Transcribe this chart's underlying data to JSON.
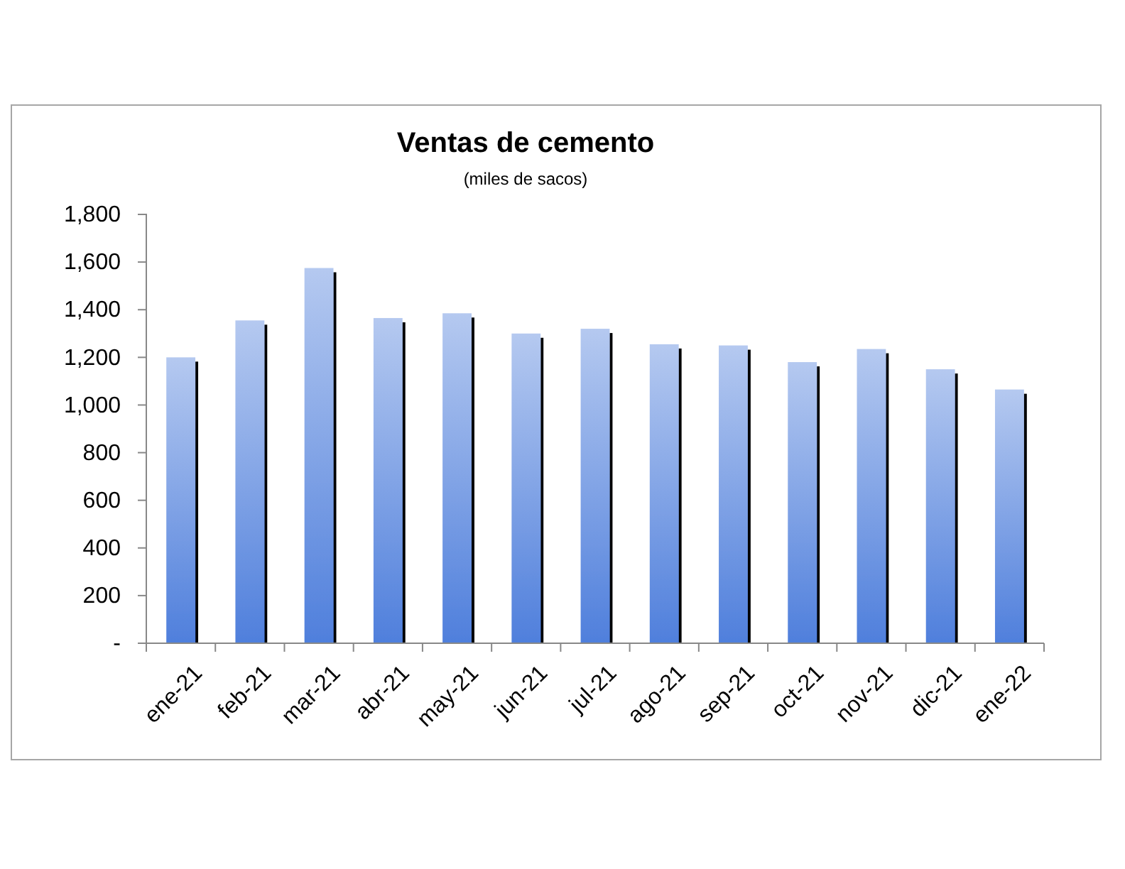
{
  "chart_data": {
    "type": "bar",
    "title": "Ventas de cemento",
    "subtitle": "(miles de sacos)",
    "categories": [
      "ene-21",
      "feb-21",
      "mar-21",
      "abr-21",
      "may-21",
      "jun-21",
      "jul-21",
      "ago-21",
      "sep-21",
      "oct-21",
      "nov-21",
      "dic-21",
      "ene-22"
    ],
    "values": [
      1200,
      1355,
      1575,
      1365,
      1385,
      1300,
      1320,
      1255,
      1250,
      1180,
      1235,
      1150,
      1065
    ],
    "color": "#82a4e6",
    "ylim": [
      0,
      1800
    ],
    "yticks": [
      {
        "value": 0,
        "label": "-"
      },
      {
        "value": 200,
        "label": "200"
      },
      {
        "value": 400,
        "label": "400"
      },
      {
        "value": 600,
        "label": "600"
      },
      {
        "value": 800,
        "label": "800"
      },
      {
        "value": 1000,
        "label": "1,000"
      },
      {
        "value": 1200,
        "label": "1,200"
      },
      {
        "value": 1400,
        "label": "1,400"
      },
      {
        "value": 1600,
        "label": "1,600"
      },
      {
        "value": 1800,
        "label": "1,800"
      }
    ],
    "grid": false
  }
}
